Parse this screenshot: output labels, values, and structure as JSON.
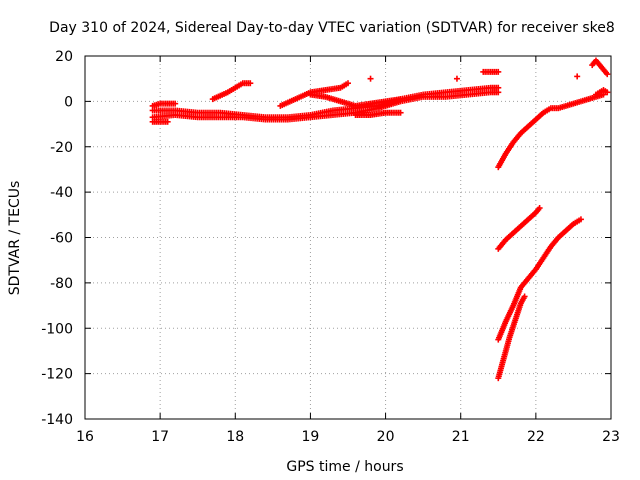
{
  "chart_data": {
    "type": "scatter",
    "title": "Day 310 of 2024, Sidereal Day-to-day VTEC variation (SDTVAR) for receiver ske8",
    "xlabel": "GPS time / hours",
    "ylabel": "SDTVAR / TECUs",
    "xlim": [
      16,
      23
    ],
    "ylim": [
      -140,
      20
    ],
    "xticks": [
      16,
      17,
      18,
      19,
      20,
      21,
      22,
      23
    ],
    "yticks": [
      -140,
      -120,
      -100,
      -80,
      -60,
      -40,
      -20,
      0,
      20
    ],
    "grid": true,
    "legend": "none",
    "marker": "+",
    "color": "#ff0000",
    "segments": [
      {
        "x": [
          16.9,
          17.2,
          17.5,
          17.8,
          18.1,
          18.4,
          18.7,
          19.0,
          19.3,
          19.6,
          19.9,
          20.2,
          20.5,
          20.8,
          21.1,
          21.4,
          21.5
        ],
        "y": [
          -4,
          -4,
          -5,
          -5,
          -6,
          -7,
          -7,
          -6,
          -4,
          -3,
          -2,
          1,
          3,
          4,
          5,
          6,
          6
        ]
      },
      {
        "x": [
          16.9,
          17.2,
          17.5,
          17.8,
          18.1,
          18.4,
          18.7,
          19.0,
          19.3,
          19.6,
          19.9,
          20.2,
          20.5,
          20.8,
          21.1,
          21.4,
          21.5
        ],
        "y": [
          -7,
          -6,
          -7,
          -7,
          -7,
          -8,
          -8,
          -7,
          -6,
          -5,
          -3,
          0,
          2,
          2,
          3,
          4,
          4
        ]
      },
      {
        "x": [
          16.9,
          17.0,
          17.1
        ],
        "y": [
          -9,
          -9,
          -9
        ]
      },
      {
        "x": [
          16.9,
          17.0,
          17.2
        ],
        "y": [
          -2,
          -1,
          -1
        ]
      },
      {
        "x": [
          17.7,
          17.9,
          18.0,
          18.1,
          18.2
        ],
        "y": [
          1,
          4,
          6,
          8,
          8
        ]
      },
      {
        "x": [
          18.6,
          18.8,
          19.0,
          19.2,
          19.4,
          19.5
        ],
        "y": [
          -2,
          1,
          4,
          5,
          6,
          8
        ]
      },
      {
        "x": [
          19.0,
          19.2,
          19.4,
          19.6,
          19.8,
          20.0,
          20.2
        ],
        "y": [
          3,
          2,
          0,
          -2,
          -1,
          0,
          1
        ]
      },
      {
        "x": [
          19.6,
          19.8,
          20.0,
          20.2
        ],
        "y": [
          -6,
          -6,
          -5,
          -5
        ]
      },
      {
        "x": [
          21.3,
          21.4,
          21.5
        ],
        "y": [
          13,
          13,
          13
        ]
      },
      {
        "x": [
          21.5,
          21.6,
          21.7,
          21.8,
          21.9,
          22.0,
          22.1,
          22.2,
          22.3,
          22.5,
          22.7,
          22.9
        ],
        "y": [
          -29,
          -23,
          -18,
          -14,
          -11,
          -8,
          -5,
          -3,
          -3,
          -1,
          1,
          3
        ]
      },
      {
        "x": [
          22.75,
          22.8,
          22.85,
          22.9,
          22.95
        ],
        "y": [
          16,
          18,
          16,
          14,
          12
        ]
      },
      {
        "x": [
          22.8,
          22.9,
          22.95
        ],
        "y": [
          3,
          5,
          4
        ]
      },
      {
        "x": [
          21.5,
          21.6,
          21.7,
          21.8,
          21.9,
          22.0,
          22.05
        ],
        "y": [
          -65,
          -61,
          -58,
          -55,
          -52,
          -49,
          -47
        ]
      },
      {
        "x": [
          21.5,
          21.6,
          21.7,
          21.8,
          21.9,
          22.0,
          22.1,
          22.2,
          22.3,
          22.4,
          22.5,
          22.6
        ],
        "y": [
          -105,
          -97,
          -90,
          -82,
          -78,
          -74,
          -69,
          -64,
          -60,
          -57,
          -54,
          -52
        ]
      },
      {
        "x": [
          21.5,
          21.55,
          21.6,
          21.65,
          21.7,
          21.75,
          21.8,
          21.85
        ],
        "y": [
          -122,
          -116,
          -110,
          -104,
          -99,
          -94,
          -89,
          -86
        ]
      }
    ],
    "points": [
      {
        "x": 19.8,
        "y": 10
      },
      {
        "x": 20.95,
        "y": 10
      },
      {
        "x": 22.55,
        "y": 11
      }
    ]
  }
}
